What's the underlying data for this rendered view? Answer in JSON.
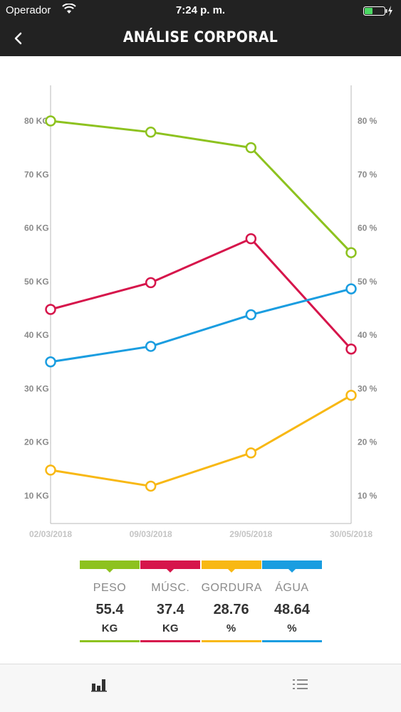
{
  "status_bar": {
    "carrier": "Operador",
    "time": "7:24 p. m.",
    "battery_color": "#4cd964"
  },
  "header": {
    "title": "ANÁLISE CORPORAL",
    "back_icon": "chevron-left-icon"
  },
  "chart_data": {
    "type": "line",
    "x": [
      "02/03/2018",
      "09/03/2018",
      "29/05/2018",
      "30/05/2018"
    ],
    "left_axis": {
      "ticks": [
        10,
        20,
        30,
        40,
        50,
        60,
        70,
        80
      ],
      "tick_labels": [
        "10 KG",
        "20 KG",
        "30 KG",
        "40 KG",
        "50 KG",
        "60 KG",
        "70 KG",
        "80 KG"
      ],
      "range": [
        3,
        88
      ]
    },
    "right_axis": {
      "ticks": [
        10,
        20,
        30,
        40,
        50,
        60,
        70,
        80
      ],
      "tick_labels": [
        "10 %",
        "20 %",
        "30 %",
        "40 %",
        "50 %",
        "60 %",
        "70 %",
        "80 %"
      ],
      "range": [
        3,
        88
      ]
    },
    "grid": false,
    "series": [
      {
        "name": "PESO",
        "axis": "left",
        "color": "#8dc21f",
        "values": [
          80,
          77.9,
          75,
          55.4
        ]
      },
      {
        "name": "MÚSC.",
        "axis": "left",
        "color": "#d6154b",
        "values": [
          44.8,
          49.8,
          58,
          37.4
        ]
      },
      {
        "name": "GORDURA",
        "axis": "right",
        "color": "#f8b814",
        "values": [
          14.8,
          11.8,
          18,
          28.76
        ]
      },
      {
        "name": "ÁGUA",
        "axis": "right",
        "color": "#1a9de0",
        "values": [
          35,
          37.9,
          43.8,
          48.64
        ]
      }
    ]
  },
  "legend": [
    {
      "name": "PESO",
      "value": "55.4",
      "unit": "KG",
      "color": "#8dc21f"
    },
    {
      "name": "MÚSC.",
      "value": "37.4",
      "unit": "KG",
      "color": "#d6154b"
    },
    {
      "name": "GORDURA",
      "value": "28.76",
      "unit": "%",
      "color": "#f8b814"
    },
    {
      "name": "ÁGUA",
      "value": "48.64",
      "unit": "%",
      "color": "#1a9de0"
    }
  ],
  "tab_bar": {
    "items": [
      {
        "icon": "bar-chart-icon",
        "active": true
      },
      {
        "icon": "list-icon",
        "active": false
      }
    ]
  }
}
